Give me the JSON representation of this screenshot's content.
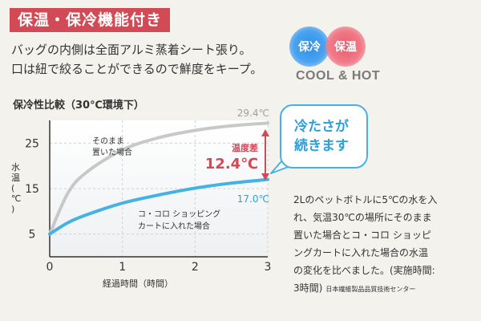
{
  "header": {
    "tag": "保温・保冷機能付き",
    "line1": "バッグの内側は全面アルミ蒸着シート張り。",
    "line2": "口は紐で絞ることができるので鮮度をキープ。"
  },
  "badges": {
    "cool": "保冷",
    "hot": "保温",
    "caption": "COOL & HOT",
    "cool_color": "#2e8ee6",
    "hot_color": "#ea5c6e"
  },
  "callout": {
    "line1": "冷たさが",
    "line2": "続きます"
  },
  "note": {
    "l1": "2Lのペットボトルに5℃の水を入",
    "l2": "れ、気温30℃の場所にそのまま",
    "l3": "置いた場合とコ・コロ ショッピ",
    "l4": "ングカートに入れた場合の水温",
    "l5": "の変化を比べました。(実施時間:",
    "l6": "3時間)",
    "org": "日本繊維製品品質技術センター"
  },
  "chart_data": {
    "type": "line",
    "title": "保冷性比較（30℃環境下）",
    "xlabel": "経過時間（時間）",
    "ylabel": "水温（℃）",
    "xlim": [
      0,
      3
    ],
    "ylim": [
      0,
      30
    ],
    "x_ticks": [
      "0",
      "1",
      "2",
      "3"
    ],
    "y_ticks": [
      "5",
      "15",
      "25"
    ],
    "grid": true,
    "series": [
      {
        "name": "そのまま置いた場合",
        "color": "#c8c8c8",
        "x": [
          0,
          0.25,
          0.5,
          1,
          1.5,
          2,
          2.5,
          3
        ],
        "y": [
          5,
          14,
          18.5,
          23.5,
          26.2,
          27.8,
          28.8,
          29.4
        ],
        "end_label": "29.4℃"
      },
      {
        "name": "コ・コロ ショッピングカートに入れた場合",
        "color": "#45b2e6",
        "x": [
          0,
          0.25,
          0.5,
          1,
          1.5,
          2,
          2.5,
          3
        ],
        "y": [
          5,
          7.5,
          9.2,
          11.8,
          13.6,
          15.1,
          16.2,
          17.0
        ],
        "end_label": "17.0℃"
      }
    ],
    "annotation": {
      "label": "温度差",
      "value": "12.4℃"
    },
    "series_labels": {
      "gray_l1": "そのまま",
      "gray_l2": "置いた場合",
      "blue_l1": "コ・コロ ショッピング",
      "blue_l2": "カートに入れた場合"
    }
  }
}
